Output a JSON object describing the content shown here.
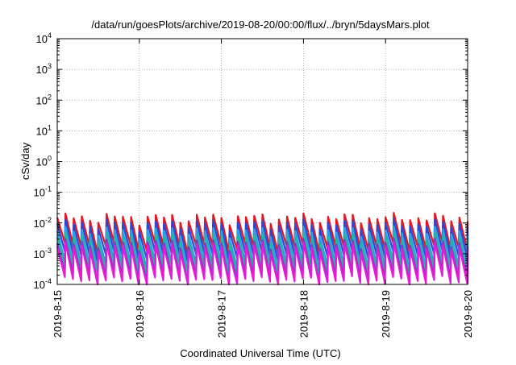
{
  "chart_data": {
    "type": "line",
    "title": "/data/run/goesPlots/archive/2019-08-20/00:00/flux/../bryn/5daysMars.plot",
    "xlabel": "Coordinated Universal Time (UTC)",
    "ylabel": "cSv/day",
    "x_tick_labels": [
      "2019-8-15",
      "2019-8-16",
      "2019-8-17",
      "2019-8-18",
      "2019-8-19",
      "2019-8-20"
    ],
    "xlim": [
      "2019-08-15",
      "2019-08-20"
    ],
    "y_scale": "log",
    "ylim": [
      0.0001,
      10000
    ],
    "y_ticks": [
      {
        "base": "10",
        "exp": "4",
        "value": 10000
      },
      {
        "base": "10",
        "exp": "3",
        "value": 1000
      },
      {
        "base": "10",
        "exp": "2",
        "value": 100
      },
      {
        "base": "10",
        "exp": "1",
        "value": 10
      },
      {
        "base": "10",
        "exp": "0",
        "value": 1
      },
      {
        "base": "10",
        "exp": "-1",
        "value": 0.1
      },
      {
        "base": "10",
        "exp": "-2",
        "value": 0.01
      },
      {
        "base": "10",
        "exp": "-3",
        "value": 0.001
      },
      {
        "base": "10",
        "exp": "-4",
        "value": 0.0001
      }
    ],
    "grid": true,
    "sawtooth_period_hours": 2.4,
    "series": [
      {
        "color": "#e8141e",
        "peak": 0.015,
        "trough": 0.0017
      },
      {
        "color": "#2a48d8",
        "peak": 0.0095,
        "trough": 0.0009
      },
      {
        "color": "#2aa0e6",
        "peak": 0.0055,
        "trough": 0.00045
      },
      {
        "color": "#20b8a0",
        "peak": 0.0035,
        "trough": 0.0003
      },
      {
        "color": "#8a32c8",
        "peak": 0.0022,
        "trough": 0.00018
      },
      {
        "color": "#e81ad8",
        "peak": 0.0017,
        "trough": 0.00013
      }
    ]
  }
}
